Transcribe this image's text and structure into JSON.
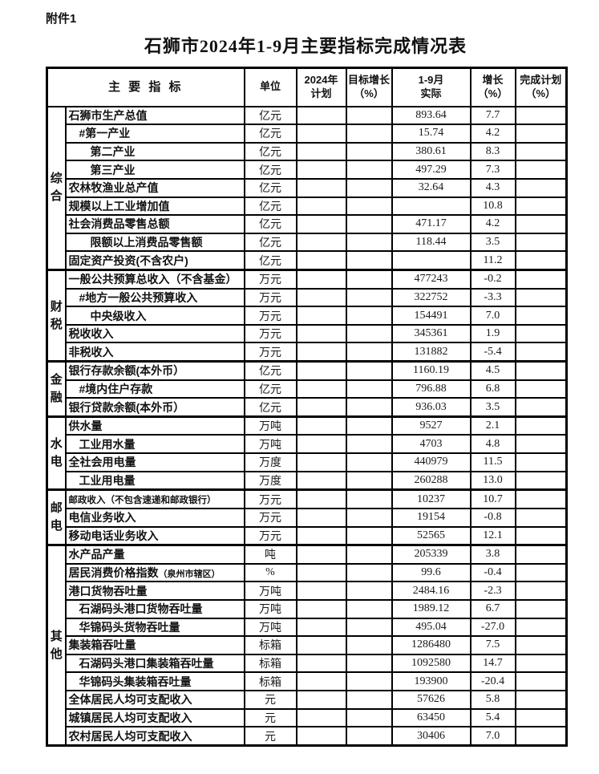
{
  "page": {
    "attachment_label": "附件1",
    "title": "石狮市2024年1-9月主要指标完成情况表"
  },
  "colors": {
    "border": "#000000",
    "text": "#111111",
    "background": "#ffffff"
  },
  "table": {
    "headers": {
      "indicator": "主 要 指 标",
      "unit": "单位",
      "plan": "2024年\n计划",
      "target": "目标增长\n（%）",
      "actual": "1-9月\n实际",
      "growth": "增长\n（%）",
      "completion": "完成计划\n（%）"
    },
    "groups": [
      {
        "label": "综合",
        "rows": [
          {
            "label": "石狮市生产总值",
            "indent": 0,
            "unit": "亿元",
            "plan": "",
            "target": "",
            "actual": "893.64",
            "growth": "7.7",
            "completion": ""
          },
          {
            "label": "#第一产业",
            "indent": 1,
            "unit": "亿元",
            "plan": "",
            "target": "",
            "actual": "15.74",
            "growth": "4.2",
            "completion": ""
          },
          {
            "label": "第二产业",
            "indent": 2,
            "unit": "亿元",
            "plan": "",
            "target": "",
            "actual": "380.61",
            "growth": "8.3",
            "completion": ""
          },
          {
            "label": "第三产业",
            "indent": 2,
            "unit": "亿元",
            "plan": "",
            "target": "",
            "actual": "497.29",
            "growth": "7.3",
            "completion": ""
          },
          {
            "label": "农林牧渔业总产值",
            "indent": 0,
            "unit": "亿元",
            "plan": "",
            "target": "",
            "actual": "32.64",
            "growth": "4.3",
            "completion": ""
          },
          {
            "label": "规模以上工业增加值",
            "indent": 0,
            "unit": "亿元",
            "plan": "",
            "target": "",
            "actual": "",
            "growth": "10.8",
            "completion": ""
          },
          {
            "label": "社会消费品零售总额",
            "indent": 0,
            "unit": "亿元",
            "plan": "",
            "target": "",
            "actual": "471.17",
            "growth": "4.2",
            "completion": ""
          },
          {
            "label": "限额以上消费品零售额",
            "indent": 2,
            "unit": "亿元",
            "plan": "",
            "target": "",
            "actual": "118.44",
            "growth": "3.5",
            "completion": ""
          },
          {
            "label": "固定资产投资(不含农户)",
            "indent": 0,
            "unit": "亿元",
            "plan": "",
            "target": "",
            "actual": "",
            "growth": "11.2",
            "completion": ""
          }
        ]
      },
      {
        "label": "财税",
        "rows": [
          {
            "label": "一般公共预算总收入（不含基金）",
            "indent": 0,
            "unit": "万元",
            "plan": "",
            "target": "",
            "actual": "477243",
            "growth": "-0.2",
            "completion": ""
          },
          {
            "label": "#地方一般公共预算收入",
            "indent": 1,
            "unit": "万元",
            "plan": "",
            "target": "",
            "actual": "322752",
            "growth": "-3.3",
            "completion": ""
          },
          {
            "label": "中央级收入",
            "indent": 2,
            "unit": "万元",
            "plan": "",
            "target": "",
            "actual": "154491",
            "growth": "7.0",
            "completion": ""
          },
          {
            "label": "税收收入",
            "indent": 0,
            "unit": "万元",
            "plan": "",
            "target": "",
            "actual": "345361",
            "growth": "1.9",
            "completion": ""
          },
          {
            "label": "非税收入",
            "indent": 0,
            "unit": "万元",
            "plan": "",
            "target": "",
            "actual": "131882",
            "growth": "-5.4",
            "completion": ""
          }
        ]
      },
      {
        "label": "金融",
        "rows": [
          {
            "label": "银行存款余额(本外币）",
            "indent": 0,
            "unit": "亿元",
            "plan": "",
            "target": "",
            "actual": "1160.19",
            "growth": "4.5",
            "completion": ""
          },
          {
            "label": "#境内住户存款",
            "indent": 1,
            "unit": "亿元",
            "plan": "",
            "target": "",
            "actual": "796.88",
            "growth": "6.8",
            "completion": ""
          },
          {
            "label": "银行贷款余额(本外币）",
            "indent": 0,
            "unit": "亿元",
            "plan": "",
            "target": "",
            "actual": "936.03",
            "growth": "3.5",
            "completion": ""
          }
        ]
      },
      {
        "label": "水电",
        "rows": [
          {
            "label": "供水量",
            "indent": 0,
            "unit": "万吨",
            "plan": "",
            "target": "",
            "actual": "9527",
            "growth": "2.1",
            "completion": ""
          },
          {
            "label": "工业用水量",
            "indent": 1,
            "unit": "万吨",
            "plan": "",
            "target": "",
            "actual": "4703",
            "growth": "4.8",
            "completion": ""
          },
          {
            "label": "全社会用电量",
            "indent": 0,
            "unit": "万度",
            "plan": "",
            "target": "",
            "actual": "440979",
            "growth": "11.5",
            "completion": ""
          },
          {
            "label": "工业用电量",
            "indent": 1,
            "unit": "万度",
            "plan": "",
            "target": "",
            "actual": "260288",
            "growth": "13.0",
            "completion": ""
          }
        ]
      },
      {
        "label": "邮电",
        "rows": [
          {
            "label": "邮政收入（不包含速递和邮政银行）",
            "indent": 0,
            "small": true,
            "unit": "万元",
            "plan": "",
            "target": "",
            "actual": "10237",
            "growth": "10.7",
            "completion": ""
          },
          {
            "label": "电信业务收入",
            "indent": 0,
            "unit": "万元",
            "plan": "",
            "target": "",
            "actual": "19154",
            "growth": "-0.8",
            "completion": ""
          },
          {
            "label": "移动电话业务收入",
            "indent": 0,
            "unit": "万元",
            "plan": "",
            "target": "",
            "actual": "52565",
            "growth": "12.1",
            "completion": ""
          }
        ]
      },
      {
        "label": "其他",
        "rows": [
          {
            "label": "水产品产量",
            "indent": 0,
            "unit": "吨",
            "plan": "",
            "target": "",
            "actual": "205339",
            "growth": "3.8",
            "completion": ""
          },
          {
            "label": "居民消费价格指数",
            "note": "（泉州市辖区）",
            "indent": 0,
            "unit": "%",
            "plan": "",
            "target": "",
            "actual": "99.6",
            "growth": "-0.4",
            "completion": ""
          },
          {
            "label": "港口货物吞吐量",
            "indent": 0,
            "unit": "万吨",
            "plan": "",
            "target": "",
            "actual": "2484.16",
            "growth": "-2.3",
            "completion": ""
          },
          {
            "label": "石湖码头港口货物吞吐量",
            "indent": 1,
            "unit": "万吨",
            "plan": "",
            "target": "",
            "actual": "1989.12",
            "growth": "6.7",
            "completion": ""
          },
          {
            "label": "华锦码头货物吞吐量",
            "indent": 1,
            "unit": "万吨",
            "plan": "",
            "target": "",
            "actual": "495.04",
            "growth": "-27.0",
            "completion": ""
          },
          {
            "label": "集装箱吞吐量",
            "indent": 0,
            "unit": "标箱",
            "plan": "",
            "target": "",
            "actual": "1286480",
            "growth": "7.5",
            "completion": ""
          },
          {
            "label": "石湖码头港口集装箱吞吐量",
            "indent": 1,
            "unit": "标箱",
            "plan": "",
            "target": "",
            "actual": "1092580",
            "growth": "14.7",
            "completion": ""
          },
          {
            "label": "华锦码头集装箱吞吐量",
            "indent": 1,
            "unit": "标箱",
            "plan": "",
            "target": "",
            "actual": "193900",
            "growth": "-20.4",
            "completion": ""
          },
          {
            "label": "全体居民人均可支配收入",
            "indent": 0,
            "unit": "元",
            "plan": "",
            "target": "",
            "actual": "57626",
            "growth": "5.8",
            "completion": ""
          },
          {
            "label": "城镇居民人均可支配收入",
            "indent": 0,
            "unit": "元",
            "plan": "",
            "target": "",
            "actual": "63450",
            "growth": "5.4",
            "completion": ""
          },
          {
            "label": "农村居民人均可支配收入",
            "indent": 0,
            "unit": "元",
            "plan": "",
            "target": "",
            "actual": "30406",
            "growth": "7.0",
            "completion": ""
          }
        ]
      }
    ]
  }
}
